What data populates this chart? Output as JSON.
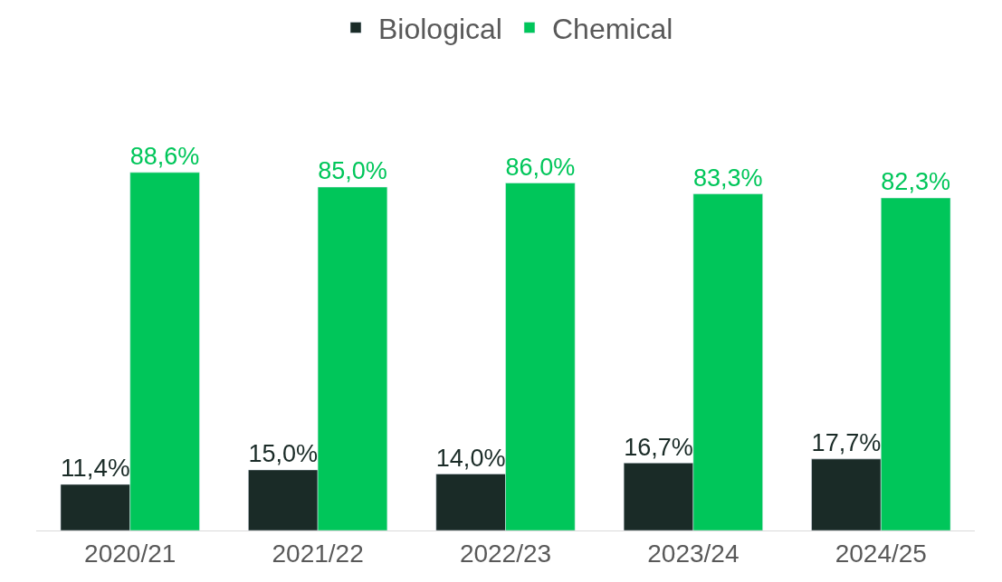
{
  "chart_data": {
    "type": "bar",
    "categories": [
      "2020/21",
      "2021/22",
      "2022/23",
      "2023/24",
      "2024/25"
    ],
    "series": [
      {
        "name": "Biological",
        "color": "#1a2b27",
        "values": [
          11.4,
          15.0,
          14.0,
          16.7,
          17.7
        ],
        "value_labels": [
          "11,4%",
          "15,0%",
          "14,0%",
          "16,7%",
          "17,7%"
        ]
      },
      {
        "name": "Chemical",
        "color": "#00c65a",
        "values": [
          88.6,
          85.0,
          86.0,
          83.3,
          82.3
        ],
        "value_labels": [
          "88,6%",
          "85,0%",
          "86,0%",
          "83,3%",
          "82,3%"
        ]
      }
    ],
    "tick_labels": "x",
    "legend": "top"
  }
}
